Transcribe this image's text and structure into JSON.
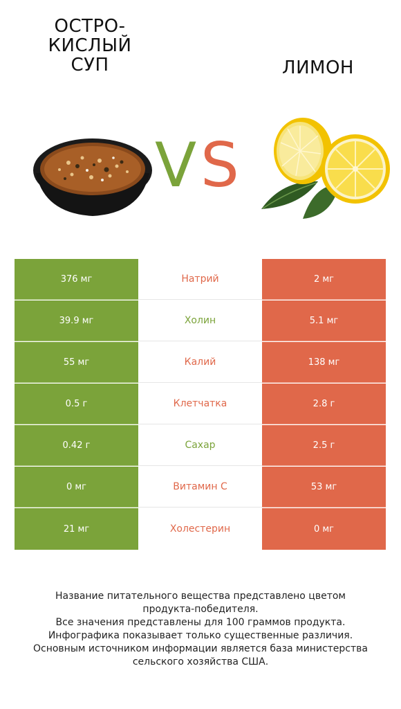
{
  "left_product": {
    "title_lines": [
      "ОСТРО-",
      "КИСЛЫЙ",
      "СУП"
    ],
    "image_icon": "soup-bowl-icon"
  },
  "right_product": {
    "title_lines": [
      "ЛИМОН"
    ],
    "image_icon": "lemon-icon"
  },
  "vs": {
    "v": "V",
    "s": "S"
  },
  "colors": {
    "left": "#7ba33a",
    "right": "#e0684a"
  },
  "rows": [
    {
      "nutrient": "Натрий",
      "left": "376 мг",
      "right": "2 мг",
      "winner": "right"
    },
    {
      "nutrient": "Холин",
      "left": "39.9 мг",
      "right": "5.1 мг",
      "winner": "left"
    },
    {
      "nutrient": "Калий",
      "left": "55 мг",
      "right": "138 мг",
      "winner": "right"
    },
    {
      "nutrient": "Клетчатка",
      "left": "0.5 г",
      "right": "2.8 г",
      "winner": "right"
    },
    {
      "nutrient": "Сахар",
      "left": "0.42 г",
      "right": "2.5 г",
      "winner": "left"
    },
    {
      "nutrient": "Витамин C",
      "left": "0 мг",
      "right": "53 мг",
      "winner": "right"
    },
    {
      "nutrient": "Холестерин",
      "left": "21 мг",
      "right": "0 мг",
      "winner": "right"
    }
  ],
  "footer_lines": [
    "Название питательного вещества представлено цветом",
    "продукта-победителя.",
    "Все значения представлены для 100 граммов продукта.",
    "Инфографика показывает только существенные различия.",
    "Основным источником информации является база министерства",
    "сельского хозяйства США."
  ]
}
